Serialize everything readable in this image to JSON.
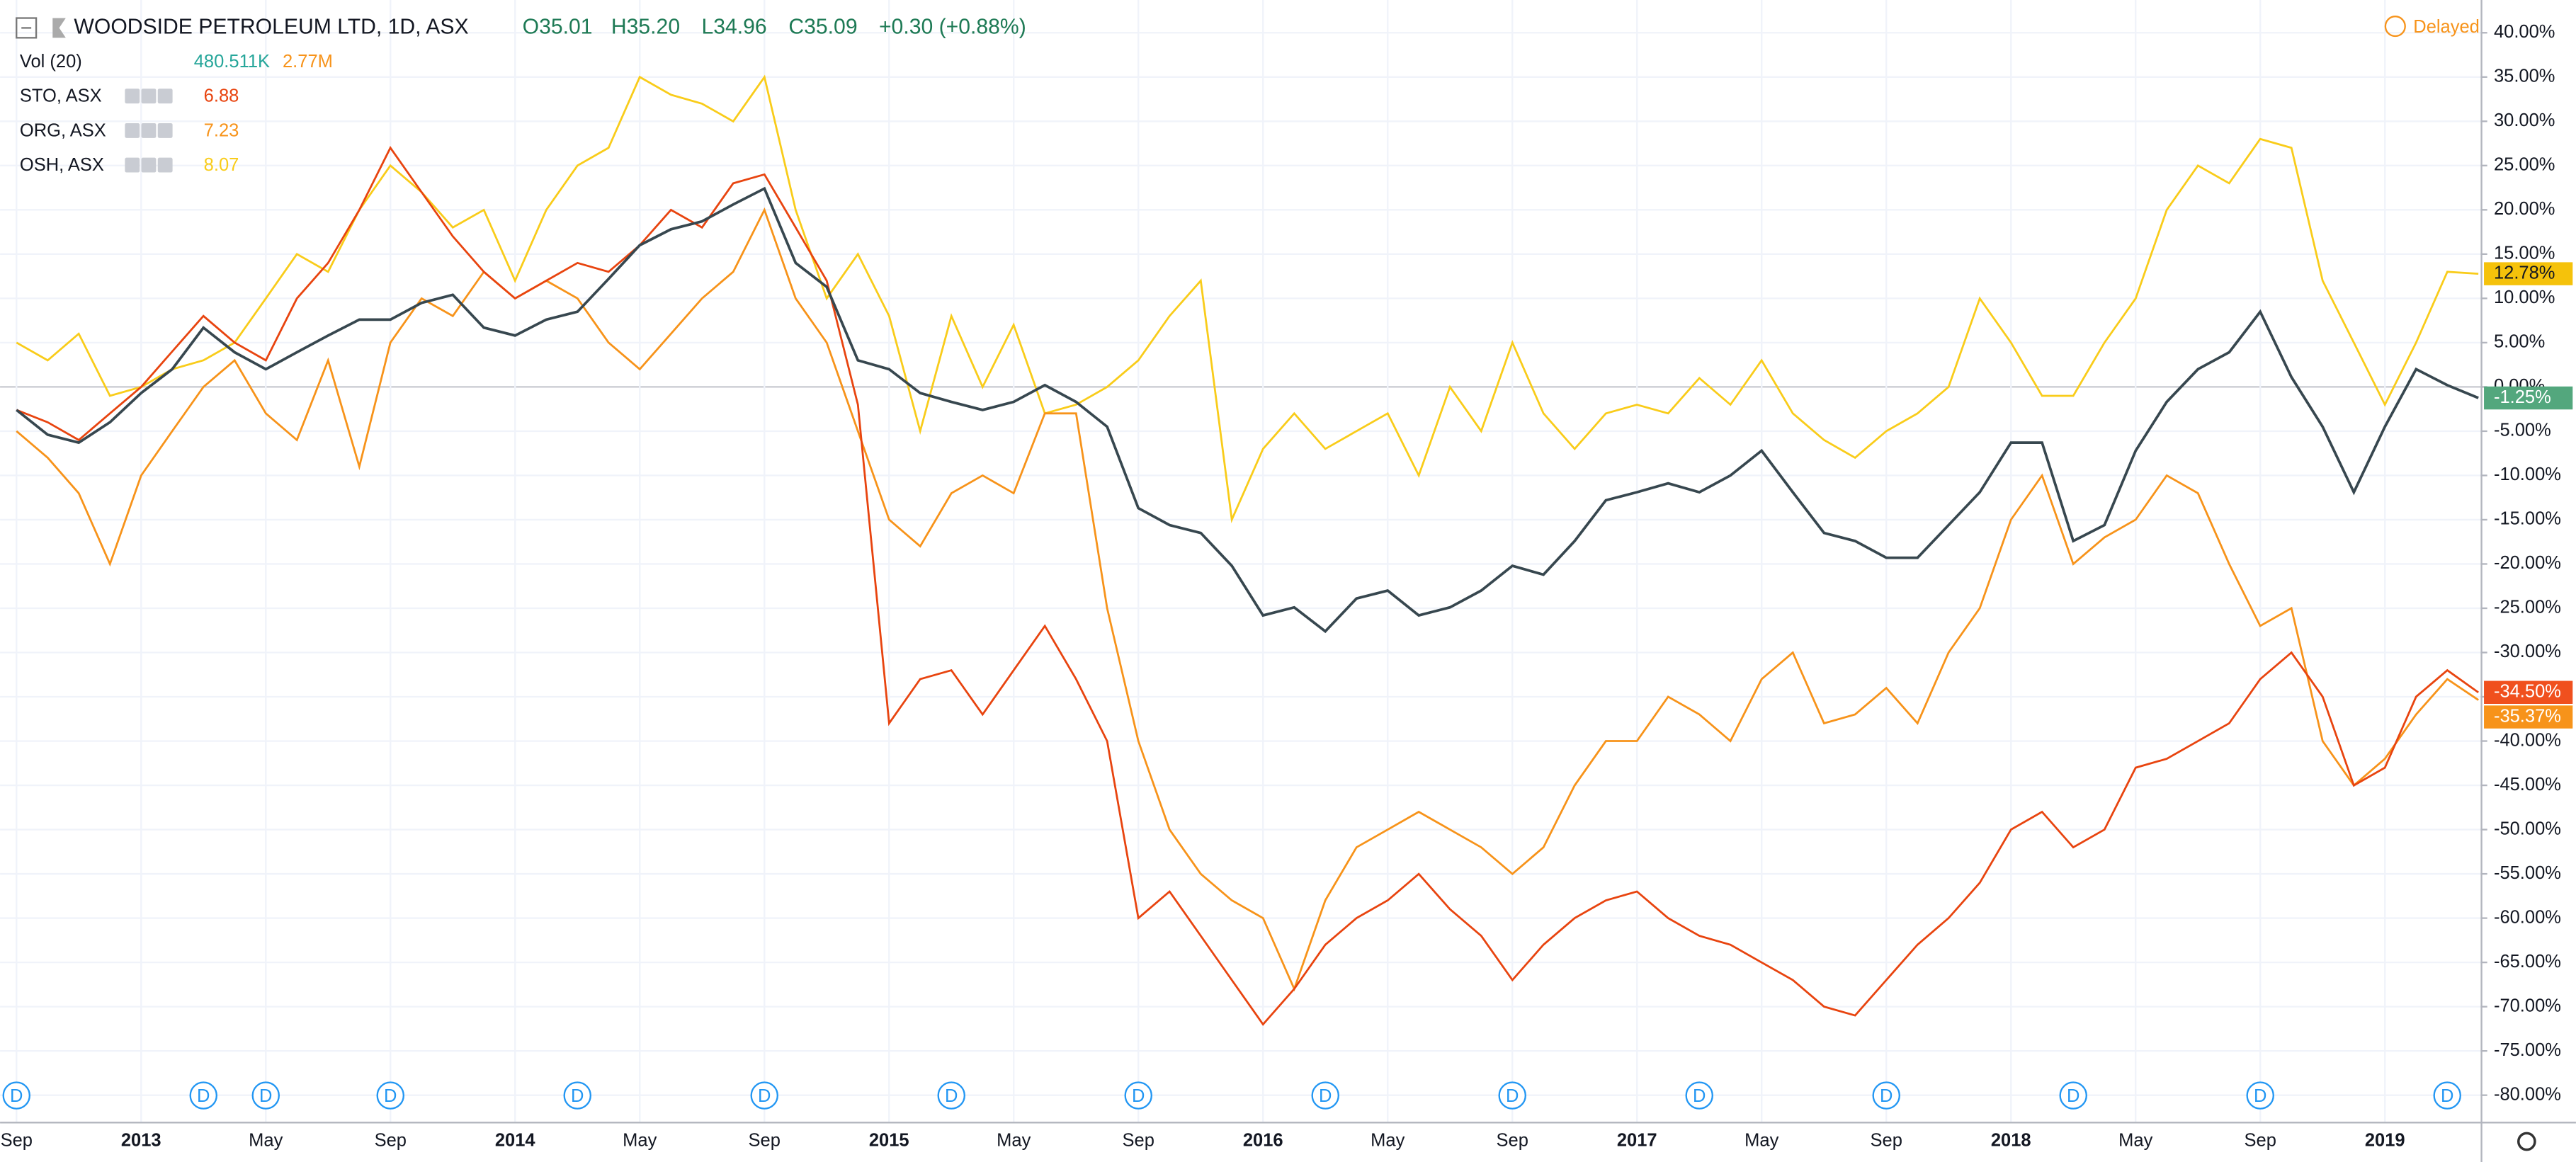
{
  "chart_data": {
    "type": "line",
    "ohlc": [
      "O35.01",
      "H35.20",
      "L34.96",
      "C35.09",
      "+0.30 (+0.88%)"
    ],
    "status": "Delayed",
    "volume_indicator": {
      "name": "Vol (20)",
      "values": [
        "480.511K",
        "2.77M"
      ],
      "colors": [
        "#26a69a",
        "#f7931a"
      ]
    },
    "categories": [
      "Sep",
      null,
      null,
      null,
      "2013",
      null,
      null,
      null,
      "May",
      null,
      null,
      null,
      "Sep",
      null,
      null,
      null,
      "2014",
      null,
      null,
      null,
      "May",
      null,
      null,
      null,
      "Sep",
      null,
      null,
      null,
      "2015",
      null,
      null,
      null,
      "May",
      null,
      null,
      null,
      "Sep",
      null,
      null,
      null,
      "2016",
      null,
      null,
      null,
      "May",
      null,
      null,
      null,
      "Sep",
      null,
      null,
      null,
      "2017",
      null,
      null,
      null,
      "May",
      null,
      null,
      null,
      "Sep",
      null,
      null,
      null,
      "2018",
      null,
      null,
      null,
      "May",
      null,
      null,
      null,
      "Sep",
      null,
      null,
      null,
      "2019",
      null,
      null,
      null
    ],
    "series": [
      {
        "name": "WOODSIDE PETROLEUM LTD, 1D, ASX",
        "color": "#37474f",
        "tag_color": "#53a77d",
        "last_value_label": "-1.25%",
        "values": [
          -2.6,
          -5.4,
          -6.3,
          -4,
          -0.7,
          2,
          6.7,
          3.9,
          2,
          3.9,
          5.8,
          7.6,
          7.6,
          9.5,
          10.4,
          6.7,
          5.8,
          7.6,
          8.5,
          12.2,
          16,
          17.8,
          18.7,
          20.6,
          22.4,
          14,
          11.3,
          3,
          2,
          -0.7,
          -1.7,
          -2.6,
          -1.7,
          0.2,
          -1.7,
          -4.5,
          -13.7,
          -15.6,
          -16.5,
          -20.2,
          -25.8,
          -24.9,
          -27.6,
          -23.9,
          -23,
          -25.8,
          -24.9,
          -23,
          -20.2,
          -21.2,
          -17.4,
          -12.8,
          -11.9,
          -10.9,
          -11.9,
          -10,
          -7.2,
          -11.9,
          -16.5,
          -17.4,
          -19.3,
          -19.3,
          -15.6,
          -11.9,
          -6.3,
          -6.3,
          -17.4,
          -15.6,
          -7.2,
          -1.7,
          2,
          3.9,
          8.5,
          1.1,
          -4.5,
          -11.9,
          -4.5,
          2,
          0.2,
          -1.25
        ]
      },
      {
        "name": "STO, ASX",
        "color": "#e8440f",
        "tag_color": "#f0501e",
        "legend_value": 6.88,
        "last_value_label": "-34.50%",
        "values": [
          -2.6,
          -4,
          -6,
          -3,
          0,
          4,
          8,
          5,
          3,
          10,
          14,
          20,
          27,
          22,
          17,
          13,
          10,
          12,
          14,
          13,
          16,
          20,
          18,
          23,
          24,
          18,
          12,
          -2,
          -38,
          -33,
          -32,
          -37,
          -32,
          -27,
          -33,
          -40,
          -60,
          -57,
          -62,
          -67,
          -72,
          -68,
          -63,
          -60,
          -58,
          -55,
          -59,
          -62,
          -67,
          -63,
          -60,
          -58,
          -57,
          -60,
          -62,
          -63,
          -65,
          -67,
          -70,
          -71,
          -67,
          -63,
          -60,
          -56,
          -50,
          -48,
          -52,
          -50,
          -43,
          -42,
          -40,
          -38,
          -33,
          -30,
          -35,
          -45,
          -43,
          -35,
          -32,
          -34.5
        ]
      },
      {
        "name": "ORG, ASX",
        "color": "#f7931a",
        "tag_color": "#f7931a",
        "legend_value": 7.23,
        "last_value_label": "-35.37%",
        "values": [
          -5,
          -8,
          -12,
          -20,
          -10,
          -5,
          0,
          3,
          -3,
          -6,
          3,
          -9,
          5,
          10,
          8,
          13,
          10,
          12,
          10,
          5,
          2,
          6,
          10,
          13,
          20,
          10,
          5,
          -5,
          -15,
          -18,
          -12,
          -10,
          -12,
          -3,
          -3,
          -25,
          -40,
          -50,
          -55,
          -58,
          -60,
          -68,
          -58,
          -52,
          -50,
          -48,
          -50,
          -52,
          -55,
          -52,
          -45,
          -40,
          -40,
          -35,
          -37,
          -40,
          -33,
          -30,
          -38,
          -37,
          -34,
          -38,
          -30,
          -25,
          -15,
          -10,
          -20,
          -17,
          -15,
          -10,
          -12,
          -20,
          -27,
          -25,
          -40,
          -45,
          -42,
          -37,
          -33,
          -35.37
        ]
      },
      {
        "name": "OSH, ASX",
        "color": "#f9cc1a",
        "tag_color": "#f5c20b",
        "legend_value": 8.07,
        "last_value_label": "12.78%",
        "values": [
          5,
          3,
          6,
          -1,
          0,
          2,
          3,
          5,
          10,
          15,
          13,
          20,
          25,
          22,
          18,
          20,
          12,
          20,
          25,
          27,
          35,
          33,
          32,
          30,
          35,
          20,
          10,
          15,
          8,
          -5,
          8,
          0,
          7,
          -3,
          -2,
          0,
          3,
          8,
          12,
          -15,
          -7,
          -3,
          -7,
          -5,
          -3,
          -10,
          0,
          -5,
          5,
          -3,
          -7,
          -3,
          -2,
          -3,
          1,
          -2,
          3,
          -3,
          -6,
          -8,
          -5,
          -3,
          0,
          10,
          5,
          -1,
          -1,
          5,
          10,
          20,
          25,
          23,
          28,
          27,
          12,
          5,
          -2,
          5,
          13,
          12.78
        ]
      }
    ],
    "ylim": [
      -83,
      43.7
    ],
    "yticks": [
      {
        "value": 40,
        "label": "40.00%"
      },
      {
        "value": 35,
        "label": "35.00%"
      },
      {
        "value": 30,
        "label": "30.00%"
      },
      {
        "value": 25,
        "label": "25.00%"
      },
      {
        "value": 20,
        "label": "20.00%"
      },
      {
        "value": 15,
        "label": "15.00%"
      },
      {
        "value": 10,
        "label": "10.00%"
      },
      {
        "value": 5,
        "label": "5.00%"
      },
      {
        "value": 0,
        "label": "0.00%"
      },
      {
        "value": -5,
        "label": "-5.00%"
      },
      {
        "value": -10,
        "label": "-10.00%"
      },
      {
        "value": -15,
        "label": "-15.00%"
      },
      {
        "value": -20,
        "label": "-20.00%"
      },
      {
        "value": -25,
        "label": "-25.00%"
      },
      {
        "value": -30,
        "label": "-30.00%"
      },
      {
        "value": -35,
        "label": "-35.00%"
      },
      {
        "value": -40,
        "label": "-40.00%"
      },
      {
        "value": -45,
        "label": "-45.00%"
      },
      {
        "value": -50,
        "label": "-50.00%"
      },
      {
        "value": -55,
        "label": "-55.00%"
      },
      {
        "value": -60,
        "label": "-60.00%"
      },
      {
        "value": -65,
        "label": "-65.00%"
      },
      {
        "value": -70,
        "label": "-70.00%"
      },
      {
        "value": -75,
        "label": "-75.00%"
      },
      {
        "value": -80,
        "label": "-80.00%"
      }
    ],
    "grid": true,
    "dividends": {
      "label": "D",
      "x": [
        0,
        6,
        8,
        12,
        18,
        24,
        30,
        36,
        42,
        48,
        54,
        60,
        66,
        72,
        78
      ]
    }
  }
}
